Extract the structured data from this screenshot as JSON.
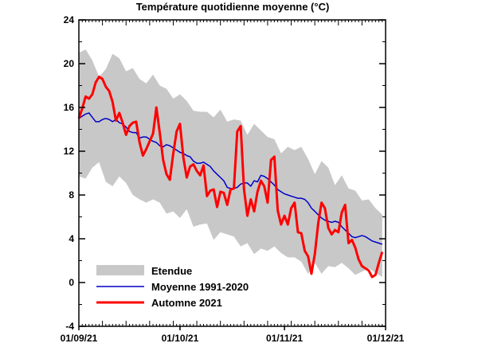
{
  "chart_data": {
    "type": "line",
    "title": "Température quotidienne moyenne (°C)",
    "xlabel": "",
    "ylabel": "",
    "ylim": [
      -4,
      24
    ],
    "y_ticks": [
      -4,
      0,
      4,
      8,
      12,
      16,
      20,
      24
    ],
    "x_tick_labels": [
      "01/09/21",
      "01/10/21",
      "01/11/21",
      "01/12/21"
    ],
    "x_tick_days": [
      0,
      30,
      61,
      91
    ],
    "xlim_days": [
      0,
      91
    ],
    "grid": false,
    "legend_position": "bottom-left",
    "series": [
      {
        "name": "Etendue",
        "kind": "band",
        "color": "#c8c8c8",
        "x": [
          0,
          2,
          4,
          6,
          8,
          10,
          12,
          14,
          16,
          18,
          20,
          22,
          24,
          26,
          28,
          30,
          32,
          34,
          36,
          38,
          40,
          42,
          44,
          46,
          48,
          50,
          52,
          54,
          56,
          58,
          60,
          62,
          64,
          66,
          68,
          70,
          72,
          74,
          76,
          78,
          80,
          82,
          84,
          86,
          88,
          90
        ],
        "upper": [
          21,
          21.3,
          20.3,
          18.8,
          19.5,
          20.9,
          20.5,
          19.3,
          19.6,
          18.6,
          18.2,
          19,
          18,
          17.7,
          16.8,
          17.2,
          16.6,
          15.7,
          15.6,
          15.6,
          15.1,
          15.8,
          14.7,
          14.9,
          14.8,
          13.5,
          14.5,
          13.9,
          13.3,
          13.1,
          11.8,
          12.4,
          12.1,
          12.4,
          11.3,
          9.9,
          11.1,
          10.5,
          8.9,
          9.8,
          8.6,
          8.4,
          7.5,
          7.6,
          6.8,
          6.2
        ],
        "lower": [
          9.7,
          9.5,
          10.5,
          11,
          9.2,
          8.8,
          9.7,
          9.1,
          8,
          7.6,
          7.3,
          7.6,
          7.3,
          6.3,
          6.5,
          5.9,
          6.7,
          5.1,
          5.3,
          5.4,
          3.9,
          4.6,
          4.4,
          4.2,
          3.3,
          3.6,
          2.6,
          3.1,
          2.9,
          3.3,
          2.7,
          2.3,
          2.3,
          1.9,
          0.8,
          1.8,
          0.8,
          1.5,
          1.4,
          1.8,
          1.3,
          0.7,
          1,
          1.3,
          0.9,
          0.5
        ]
      },
      {
        "name": "Moyenne 1991-2020",
        "kind": "line",
        "color": "#0000c8",
        "x": [
          0,
          1,
          2,
          3,
          4,
          5,
          6,
          7,
          8,
          9,
          10,
          11,
          12,
          13,
          14,
          15,
          16,
          17,
          18,
          19,
          20,
          21,
          22,
          23,
          24,
          25,
          26,
          27,
          28,
          29,
          30,
          31,
          32,
          33,
          34,
          35,
          36,
          37,
          38,
          39,
          40,
          41,
          42,
          43,
          44,
          45,
          46,
          47,
          48,
          49,
          50,
          51,
          52,
          53,
          54,
          55,
          56,
          57,
          58,
          59,
          60,
          61,
          62,
          63,
          64,
          65,
          66,
          67,
          68,
          69,
          70,
          71,
          72,
          73,
          74,
          75,
          76,
          77,
          78,
          79,
          80,
          81,
          82,
          83,
          84,
          85,
          86,
          87,
          88,
          89,
          90
        ],
        "values": [
          15,
          15.2,
          15.4,
          15.5,
          15.1,
          14.7,
          14.7,
          14.9,
          15,
          14.9,
          14.7,
          14.9,
          14.6,
          14.5,
          14.2,
          13.8,
          13.7,
          13.7,
          13.2,
          13.3,
          13.3,
          13.1,
          12.9,
          12.8,
          12.5,
          12.4,
          12.6,
          12.5,
          12.3,
          12.1,
          11.9,
          11.8,
          11.6,
          11.5,
          11.1,
          10.9,
          10.9,
          11,
          10.8,
          10.6,
          10.2,
          9.9,
          9.6,
          9.3,
          8.7,
          8.6,
          8.6,
          8.7,
          9,
          9.1,
          9.1,
          8.8,
          9.3,
          9.2,
          9.8,
          9.7,
          9.5,
          9.2,
          8.9,
          8.5,
          8.3,
          8.1,
          8,
          7.9,
          7.8,
          7.7,
          7.7,
          7.6,
          7.3,
          6.8,
          6.5,
          6.2,
          5.9,
          5.7,
          5.6,
          5.5,
          5.6,
          5.5,
          5.1,
          4.8,
          4.5,
          4.2,
          4.1,
          4.2,
          4.3,
          4.2,
          4,
          3.8,
          3.7,
          3.6,
          3.5
        ]
      },
      {
        "name": "Automne 2021",
        "kind": "line",
        "color": "#ff0000",
        "x": [
          0,
          1,
          2,
          3,
          4,
          5,
          6,
          7,
          8,
          9,
          10,
          11,
          12,
          13,
          14,
          15,
          16,
          17,
          18,
          19,
          20,
          21,
          22,
          23,
          24,
          25,
          26,
          27,
          28,
          29,
          30,
          31,
          32,
          33,
          34,
          35,
          36,
          37,
          38,
          39,
          40,
          41,
          42,
          43,
          44,
          45,
          46,
          47,
          48,
          49,
          50,
          51,
          52,
          53,
          54,
          55,
          56,
          57,
          58,
          59,
          60,
          61,
          62,
          63,
          64,
          65,
          66,
          67,
          68,
          69,
          70,
          71,
          72,
          73,
          74,
          75,
          76,
          77,
          78,
          79,
          80,
          81,
          82,
          83,
          84,
          85,
          86,
          87,
          88,
          89,
          90
        ],
        "values": [
          15,
          15.9,
          17,
          16.8,
          17.2,
          18.3,
          18.8,
          18.6,
          17.9,
          17.5,
          16.5,
          14.8,
          15.5,
          14.6,
          13.5,
          14.3,
          14.6,
          14.7,
          12.8,
          11.6,
          12.2,
          12.9,
          13.6,
          16,
          13.7,
          11.2,
          9.9,
          9.4,
          11.8,
          13.8,
          14.5,
          11.4,
          9.6,
          10.6,
          10.8,
          10.2,
          9.8,
          10.7,
          7.9,
          8.4,
          8.5,
          6.9,
          8.3,
          8.2,
          7.1,
          8.5,
          8.6,
          13.8,
          14.3,
          8.5,
          6.1,
          7.6,
          6.5,
          8.3,
          9.3,
          8.8,
          7.3,
          11.2,
          11.5,
          6.6,
          5.3,
          6.1,
          5.3,
          6.8,
          7.3,
          4.6,
          4.5,
          2.9,
          2.4,
          0.8,
          2.6,
          5.4,
          7.3,
          6.8,
          5,
          4.4,
          4.8,
          4.6,
          6.4,
          7.1,
          3.6,
          3.9,
          3.2,
          2.1,
          1.5,
          1.3,
          1.1,
          0.5,
          0.7,
          1.8,
          2.8
        ]
      }
    ]
  }
}
